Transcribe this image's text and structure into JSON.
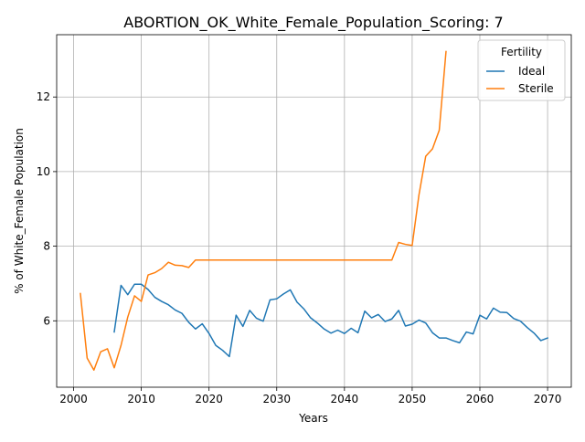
{
  "chart_data": {
    "type": "line",
    "title": "ABORTION_OK_White_Female_Population_Scoring: 7",
    "xlabel": "Years",
    "ylabel": "% of White_Female Population",
    "xlim": [
      1997.5,
      2073.5
    ],
    "ylim": [
      4.22,
      13.67
    ],
    "xticks": [
      2000,
      2010,
      2020,
      2030,
      2040,
      2050,
      2060,
      2070
    ],
    "yticks": [
      6,
      8,
      10,
      12
    ],
    "grid": true,
    "legend": {
      "title": "Fertility",
      "placement": "top-right"
    },
    "series": [
      {
        "name": "Ideal",
        "color": "#1f77b4",
        "x": [
          2006,
          2007,
          2008,
          2009,
          2010,
          2011,
          2012,
          2013,
          2014,
          2015,
          2016,
          2017,
          2018,
          2019,
          2020,
          2021,
          2022,
          2023,
          2024,
          2025,
          2026,
          2027,
          2028,
          2029,
          2030,
          2031,
          2032,
          2033,
          2034,
          2035,
          2036,
          2037,
          2038,
          2039,
          2040,
          2041,
          2042,
          2043,
          2044,
          2045,
          2046,
          2047,
          2048,
          2049,
          2050,
          2051,
          2052,
          2053,
          2054,
          2055,
          2056,
          2057,
          2058,
          2059,
          2060,
          2061,
          2062,
          2063,
          2064,
          2065,
          2066,
          2067,
          2068,
          2069,
          2070
        ],
        "y": [
          5.7,
          6.95,
          6.7,
          6.98,
          6.98,
          6.84,
          6.63,
          6.52,
          6.43,
          6.29,
          6.2,
          5.96,
          5.78,
          5.92,
          5.66,
          5.34,
          5.21,
          5.04,
          6.15,
          5.85,
          6.28,
          6.07,
          5.99,
          6.56,
          6.59,
          6.72,
          6.83,
          6.5,
          6.32,
          6.08,
          5.94,
          5.78,
          5.67,
          5.75,
          5.66,
          5.8,
          5.68,
          6.26,
          6.08,
          6.17,
          5.98,
          6.05,
          6.28,
          5.86,
          5.91,
          6.02,
          5.94,
          5.68,
          5.54,
          5.54,
          5.47,
          5.41,
          5.7,
          5.65,
          6.15,
          6.05,
          6.34,
          6.23,
          6.22,
          6.06,
          5.99,
          5.82,
          5.67,
          5.47,
          5.54
        ]
      },
      {
        "name": "Sterile",
        "color": "#ff7f0e",
        "x": [
          2001,
          2002,
          2003,
          2004,
          2005,
          2006,
          2007,
          2008,
          2009,
          2010,
          2011,
          2012,
          2013,
          2014,
          2015,
          2016,
          2017,
          2018,
          2019,
          2020,
          2021,
          2022,
          2023,
          2024,
          2025,
          2026,
          2027,
          2028,
          2029,
          2030,
          2031,
          2032,
          2033,
          2034,
          2035,
          2036,
          2037,
          2038,
          2039,
          2040,
          2041,
          2042,
          2043,
          2044,
          2045,
          2046,
          2047,
          2048,
          2049,
          2050,
          2051,
          2052,
          2053,
          2054,
          2055
        ],
        "y": [
          6.73,
          5.0,
          4.68,
          5.17,
          5.25,
          4.74,
          5.34,
          6.1,
          6.67,
          6.52,
          7.23,
          7.29,
          7.4,
          7.57,
          7.49,
          7.48,
          7.43,
          7.63,
          7.63,
          7.63,
          7.63,
          7.63,
          7.63,
          7.63,
          7.63,
          7.63,
          7.63,
          7.63,
          7.63,
          7.63,
          7.63,
          7.63,
          7.63,
          7.63,
          7.63,
          7.63,
          7.63,
          7.63,
          7.63,
          7.63,
          7.63,
          7.63,
          7.63,
          7.63,
          7.63,
          7.63,
          7.63,
          8.1,
          8.05,
          8.02,
          9.37,
          10.41,
          10.61,
          11.11,
          13.22
        ]
      }
    ]
  }
}
